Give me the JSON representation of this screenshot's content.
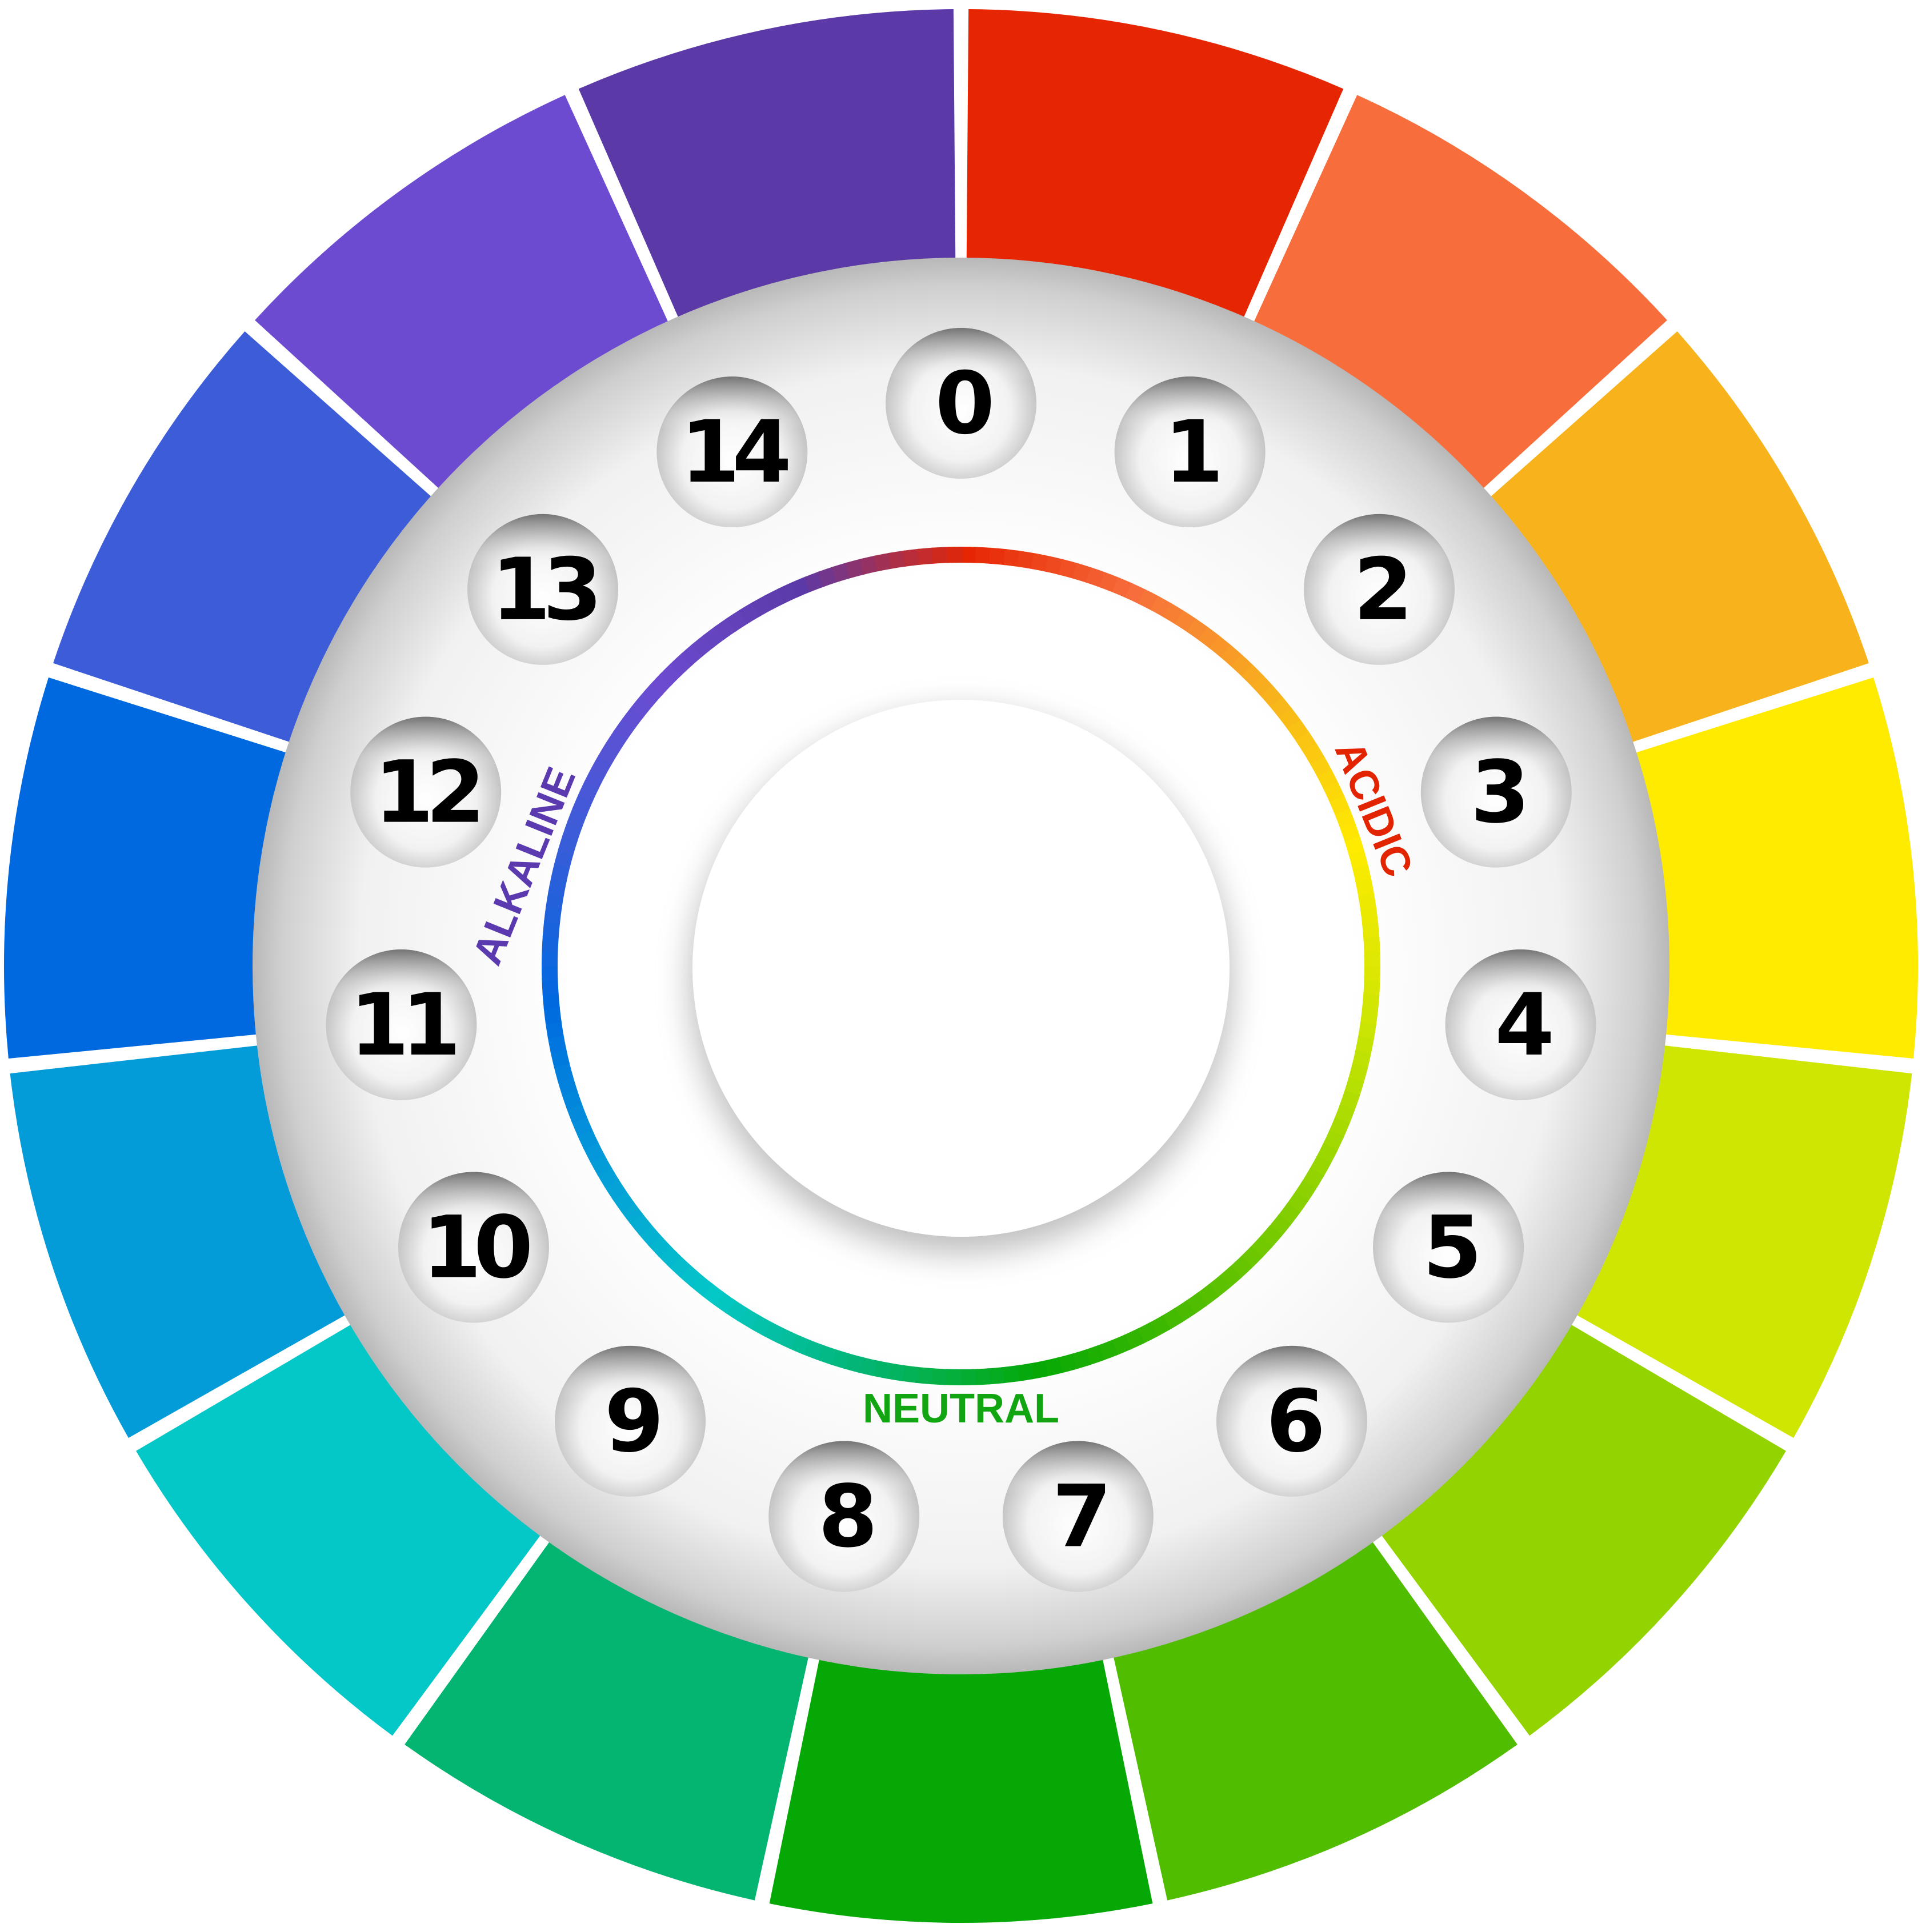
{
  "scale": {
    "values": [
      "0",
      "1",
      "2",
      "3",
      "4",
      "5",
      "6",
      "7",
      "8",
      "9",
      "10",
      "11",
      "12",
      "13",
      "14"
    ]
  },
  "segment_colors": [
    "#e62602",
    "#f76e3c",
    "#f8b31c",
    "#feeb00",
    "#cfe603",
    "#93d400",
    "#50bd00",
    "#05a805",
    "#03b571",
    "#04c7c7",
    "#049bd9",
    "#0069e0",
    "#3c5cd8",
    "#6c4bd1",
    "#5b3aa8"
  ],
  "labels": {
    "acidic": "ACIDIC",
    "neutral": "NEUTRAL",
    "alkaline": "ALKALINE"
  },
  "label_colors": {
    "acidic": "#e32400",
    "neutral": "#11a611",
    "alkaline": "#5b3ab0"
  }
}
